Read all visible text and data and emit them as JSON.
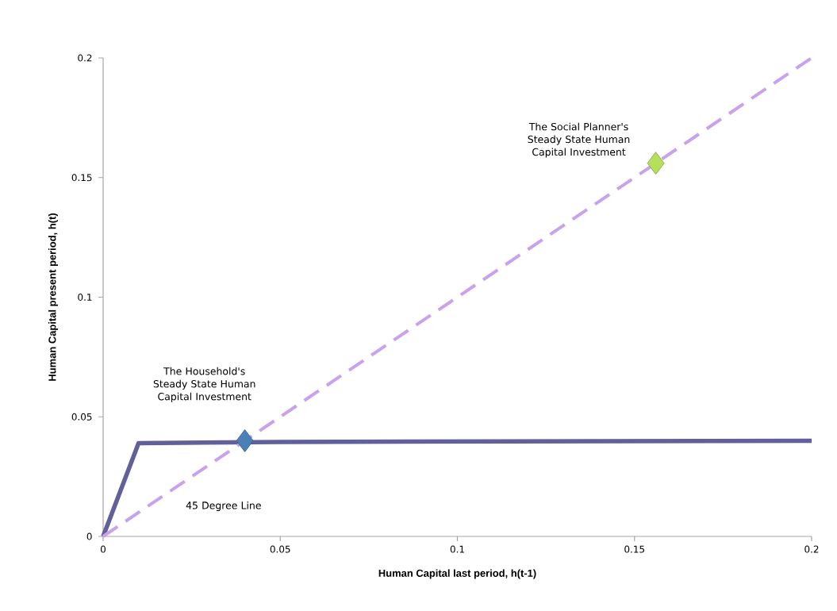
{
  "chart_data": {
    "type": "line",
    "xlabel": "Human Capital last period, h(t-1)",
    "ylabel": "Human Capital present period, h(t)",
    "xlim": [
      0,
      0.2
    ],
    "ylim": [
      0,
      0.2
    ],
    "xticks": [
      0,
      0.05,
      0.1,
      0.15,
      0.2
    ],
    "yticks": [
      0,
      0.05,
      0.1,
      0.15,
      0.2
    ],
    "grid": false,
    "series": [
      {
        "color": "#62609a",
        "line_style": "solid",
        "marker": "none",
        "x": [
          0,
          0.01,
          0.05,
          0.2
        ],
        "values": [
          0,
          0.039,
          0.0395,
          0.04
        ]
      },
      {
        "color": "#c8a2ec",
        "line_style": "dashed",
        "marker": "none",
        "x": [
          0,
          0.2
        ],
        "values": [
          0,
          0.2
        ]
      },
      {
        "type": "scatter",
        "color": "#4a7fb8",
        "marker": "diamond",
        "x": [
          0.04
        ],
        "values": [
          0.04
        ]
      },
      {
        "type": "scatter",
        "color": "#b4e05a",
        "marker": "diamond",
        "x": [
          0.156
        ],
        "values": [
          0.156
        ]
      }
    ],
    "annotations": [
      "The Household's Steady State Human Capital Investment",
      {
        "text": "The Social Planner's Steady State Human Capital Investment",
        "x": 0.156,
        "y": 0.156
      },
      "45 Degree Line"
    ]
  }
}
